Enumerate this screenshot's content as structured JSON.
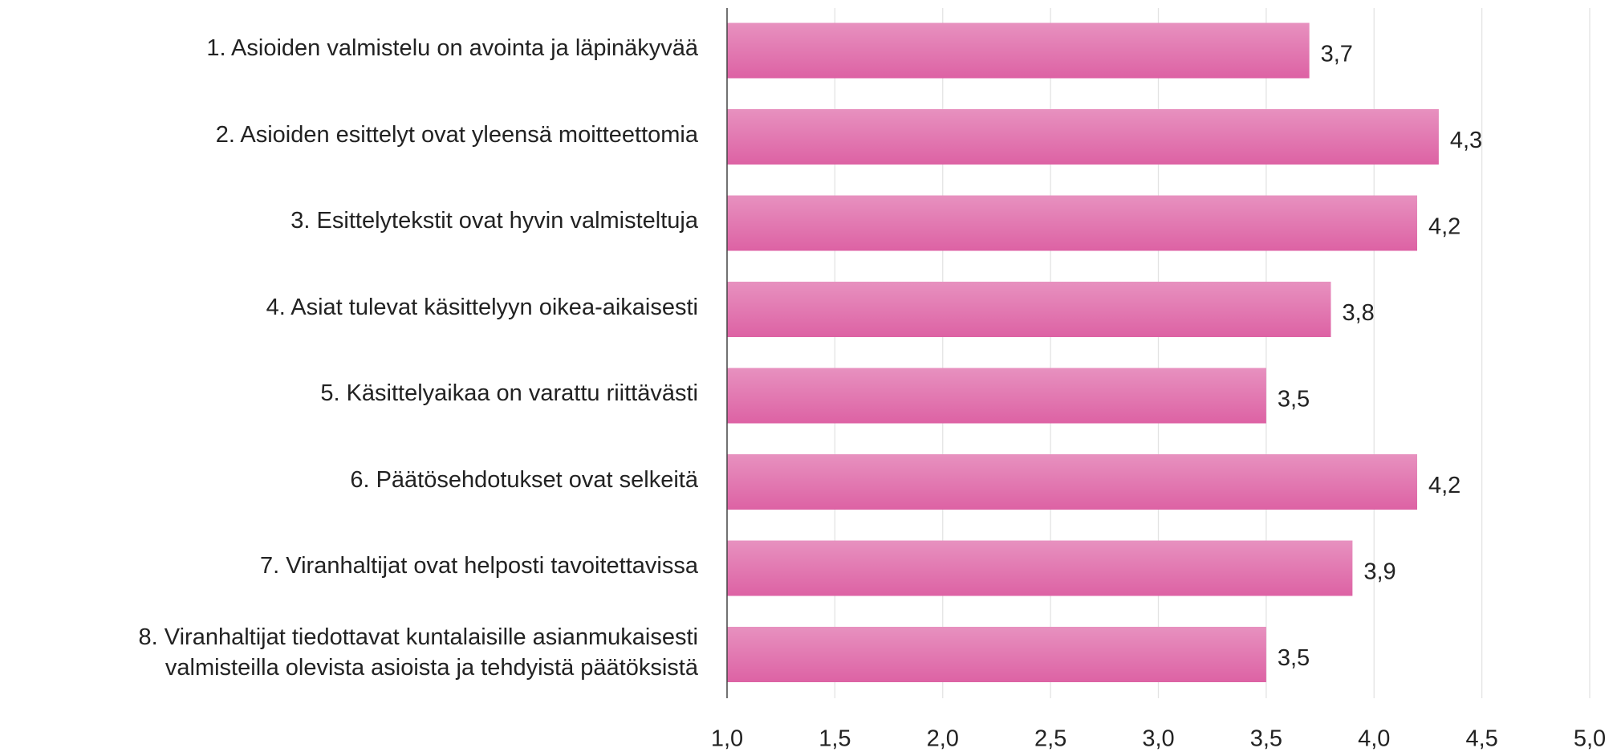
{
  "chart_data": {
    "type": "barh",
    "categories": [
      "1. Asioiden valmistelu on avointa ja läpinäkyvää",
      "2. Asioiden esittelyt ovat yleensä moitteettomia",
      "3. Esittelytekstit ovat hyvin valmisteltuja",
      "4. Asiat tulevat käsittelyyn oikea-aikaisesti",
      "5. Käsittelyaikaa on varattu riittävästi",
      "6. Päätösehdotukset ovat selkeitä",
      "7. Viranhaltijat ovat helposti tavoitettavissa",
      "8. Viranhaltijat tiedottavat kuntalaisille asianmukaisesti\nvalmisteilla olevista asioista ja tehdyistä päätöksistä"
    ],
    "values": [
      3.7,
      4.3,
      4.2,
      3.8,
      3.5,
      4.2,
      3.9,
      3.5
    ],
    "value_labels": [
      "3,7",
      "4,3",
      "4,2",
      "3,8",
      "3,5",
      "4,2",
      "3,9",
      "3,5"
    ],
    "color": "#dd62a4",
    "xlim": [
      1,
      5
    ],
    "xticks": [
      {
        "value": 1,
        "label": "1,0"
      },
      {
        "value": 1.5,
        "label": "1,5"
      },
      {
        "value": 2,
        "label": "2,0"
      },
      {
        "value": 2.5,
        "label": "2,5"
      },
      {
        "value": 3,
        "label": "3,0"
      },
      {
        "value": 3.5,
        "label": "3,5"
      },
      {
        "value": 4,
        "label": "4,0"
      },
      {
        "value": 4.5,
        "label": "4,5"
      },
      {
        "value": 5,
        "label": "5,0"
      }
    ],
    "grid": true
  }
}
